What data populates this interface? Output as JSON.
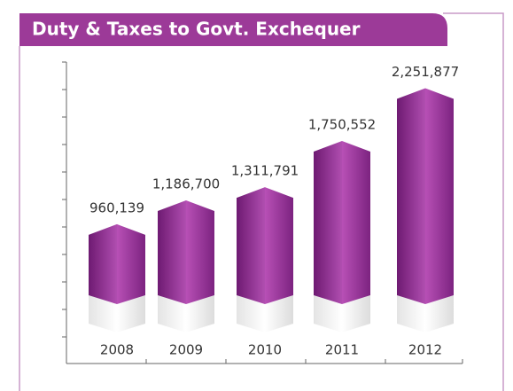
{
  "chart_data": {
    "type": "bar",
    "title": "Duty & Taxes to Govt. Exchequer",
    "categories": [
      "2008",
      "2009",
      "2010",
      "2011",
      "2012"
    ],
    "values": [
      960139,
      1186700,
      1311791,
      1750552,
      2251877
    ],
    "value_labels": [
      "960,139",
      "1,186,700",
      "1,311,791",
      "1,750,552",
      "2,251,877"
    ],
    "color": "#9c3a98",
    "ylim": [
      0,
      2500000
    ]
  }
}
